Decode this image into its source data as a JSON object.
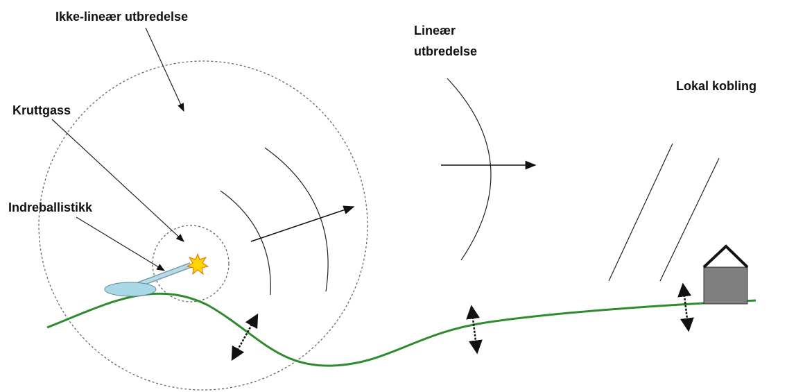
{
  "labels": [
    [
      "Ikke-lineær utbredelse"
    ],
    [
      "Kruttgass"
    ],
    [
      "Indreballistikk"
    ],
    [
      "Lineær",
      "utbredelse"
    ],
    [
      "Lokal kobling"
    ]
  ]
}
